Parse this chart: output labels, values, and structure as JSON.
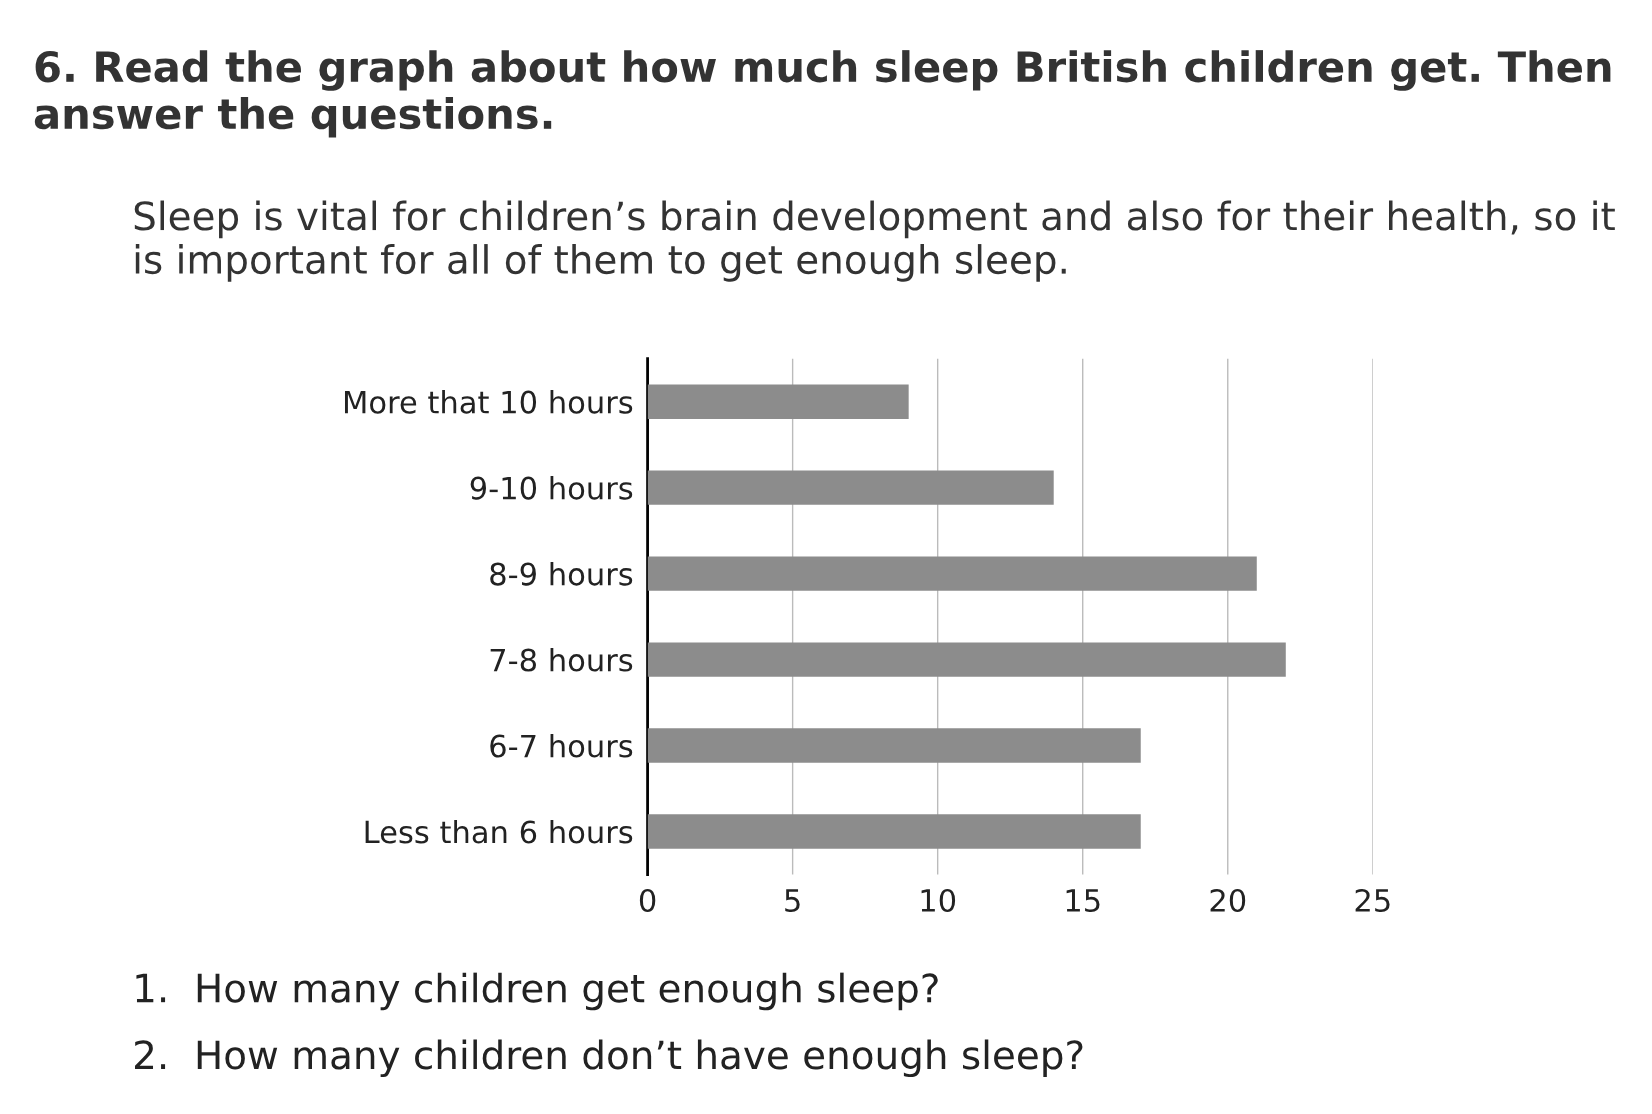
{
  "chart_data": {
    "type": "bar",
    "orientation": "horizontal",
    "title": "6. Read the graph about how much sleep British children get. Then answer the questions.",
    "subtitle": "Sleep is vital for children’s brain development and also for their health, so it is important for all of them to get enough sleep.",
    "categories": [
      "More that 10 hours",
      "9-10 hours",
      "8-9 hours",
      "7-8 hours",
      "6-7 hours",
      "Less than 6 hours"
    ],
    "values": [
      9,
      14,
      21,
      22,
      17,
      17
    ],
    "color": "#8c8c8c",
    "xlim": [
      0,
      25
    ],
    "xticks": [
      0,
      5,
      10,
      15,
      20,
      25
    ],
    "grid": "x",
    "annotations": [
      "1.  How many children get enough sleep?",
      "2.  How many children don’t have enough sleep?"
    ]
  }
}
